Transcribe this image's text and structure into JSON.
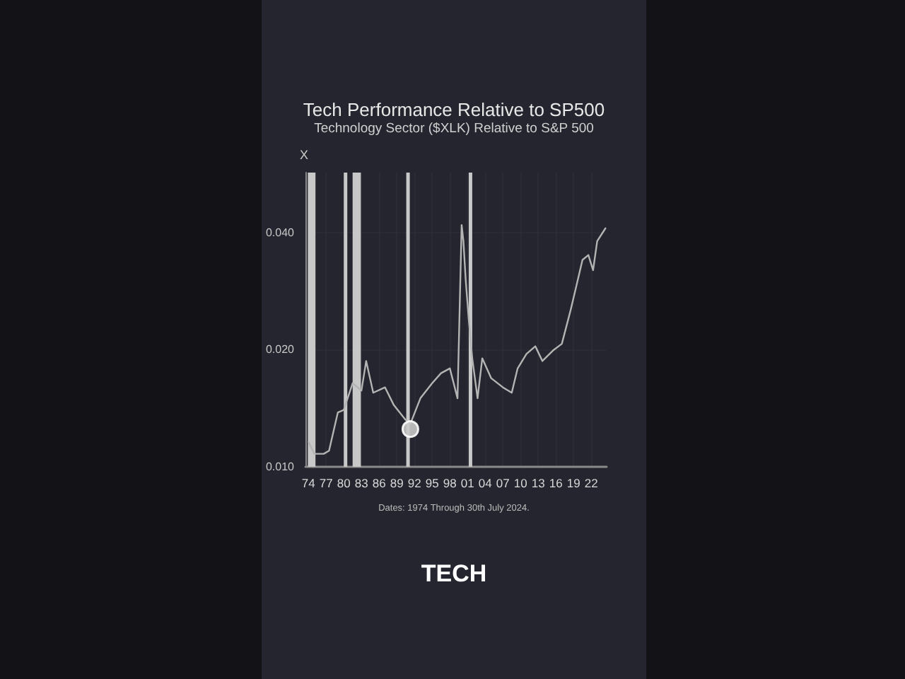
{
  "chart_data": {
    "type": "line",
    "title": "Tech Performance Relative to SP500",
    "subtitle": "Technology Sector ($XLK) Relative to S&P 500",
    "ylabel": "X",
    "annotations": [
      "Dates: 1974 Through 30th July 2024.",
      "TECH"
    ],
    "log": "y",
    "grid": true,
    "xlim": [
      1973.5,
      2024.6
    ],
    "xticks": [
      {
        "value": 1974,
        "label": "74"
      },
      {
        "value": 1977,
        "label": "77"
      },
      {
        "value": 1980,
        "label": "80"
      },
      {
        "value": 1983,
        "label": "83"
      },
      {
        "value": 1986,
        "label": "86"
      },
      {
        "value": 1989,
        "label": "89"
      },
      {
        "value": 1992,
        "label": "92"
      },
      {
        "value": 1995,
        "label": "95"
      },
      {
        "value": 1998,
        "label": "98"
      },
      {
        "value": 2001,
        "label": "01"
      },
      {
        "value": 2004,
        "label": "04"
      },
      {
        "value": 2007,
        "label": "07"
      },
      {
        "value": 2010,
        "label": "10"
      },
      {
        "value": 2013,
        "label": "13"
      },
      {
        "value": 2016,
        "label": "16"
      },
      {
        "value": 2019,
        "label": "19"
      },
      {
        "value": 2022,
        "label": "22"
      }
    ],
    "ylim": [
      0.01,
      0.057
    ],
    "yticks": [
      {
        "value": 0.01,
        "label": "0.010"
      },
      {
        "value": 0.02,
        "label": "0.020"
      },
      {
        "value": 0.04,
        "label": "0.040"
      }
    ],
    "bands": [
      {
        "axis": "x",
        "from": 1973.9,
        "to": 1975.2,
        "color": "#c8c8c8"
      },
      {
        "axis": "x",
        "from": 1980.0,
        "to": 1980.6,
        "color": "#c8c8c8"
      },
      {
        "axis": "x",
        "from": 1981.5,
        "to": 1982.9,
        "color": "#c8c8c8"
      },
      {
        "axis": "x",
        "from": 1990.6,
        "to": 1991.2,
        "color": "#c8c8c8"
      },
      {
        "axis": "x",
        "from": 2001.2,
        "to": 2001.8,
        "color": "#c8c8c8"
      }
    ],
    "series": [
      {
        "color": "#b4b4b4",
        "marker": "none",
        "line_style": "solid",
        "x": [
          1974.0,
          1975.0,
          1976.6,
          1977.5,
          1979.0,
          1980.0,
          1981.5,
          1983.0,
          1983.8,
          1985.0,
          1987.0,
          1988.5,
          1990.5,
          1991.3,
          1993.0,
          1995.0,
          1996.5,
          1998.0,
          1999.3,
          2000.0,
          2000.3,
          2000.7,
          2001.2,
          2001.8,
          2002.7,
          2003.5,
          2005.0,
          2007.0,
          2008.5,
          2009.5,
          2011.0,
          2012.5,
          2013.7,
          2015.5,
          2017.0,
          2018.5,
          2019.5,
          2020.5,
          2021.5,
          2022.3,
          2023.0,
          2024.4
        ],
        "values": [
          0.0116,
          0.0108,
          0.0108,
          0.011,
          0.0138,
          0.014,
          0.0164,
          0.0157,
          0.0187,
          0.0155,
          0.016,
          0.0144,
          0.0132,
          0.0129,
          0.015,
          0.0164,
          0.0174,
          0.0179,
          0.015,
          0.0418,
          0.038,
          0.03,
          0.024,
          0.019,
          0.015,
          0.019,
          0.0169,
          0.016,
          0.0155,
          0.0179,
          0.0195,
          0.0204,
          0.0187,
          0.0199,
          0.0207,
          0.0253,
          0.0293,
          0.034,
          0.035,
          0.032,
          0.038,
          0.041
        ]
      },
      {
        "type": "scatter",
        "color": "#c8c8c8",
        "marker": "circle",
        "x": [
          1991.3
        ],
        "values": [
          0.0125
        ]
      }
    ]
  }
}
